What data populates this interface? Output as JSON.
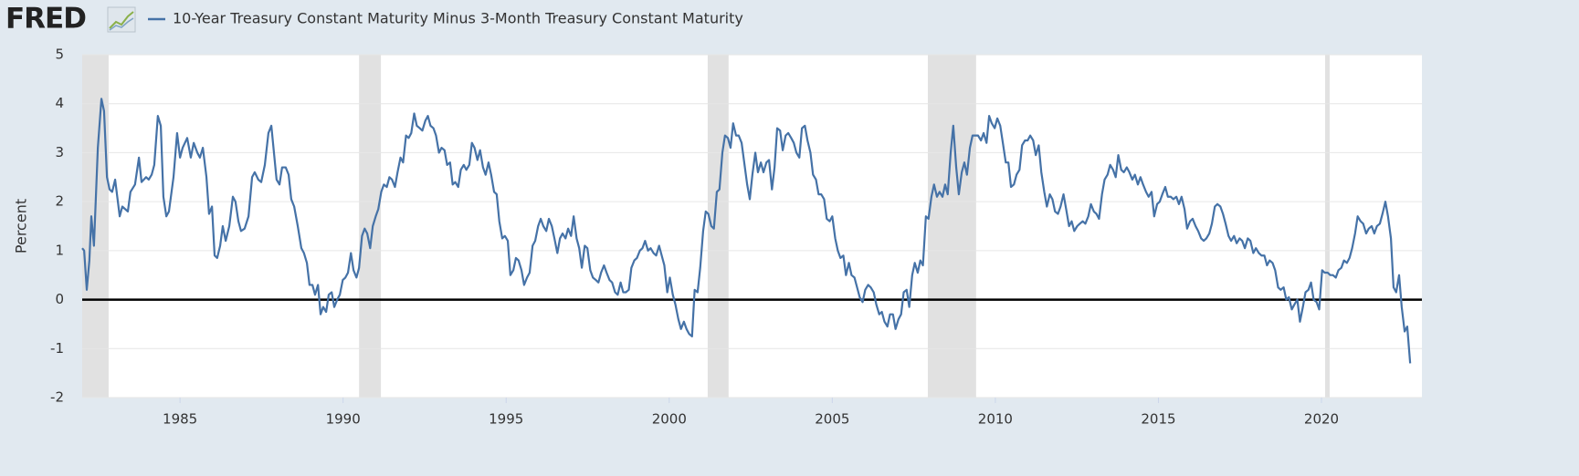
{
  "chart_data": {
    "type": "line",
    "logo": "FRED",
    "ylabel": "Percent",
    "grid": true,
    "xlim": [
      1982,
      2023.08
    ],
    "xticks": [
      1985,
      1990,
      1995,
      2000,
      2005,
      2010,
      2015,
      2020
    ],
    "ylim": [
      -2,
      5
    ],
    "yticks": [
      -2,
      -1,
      0,
      1,
      2,
      3,
      4,
      5
    ],
    "recession_color": "#e1e1e1",
    "recessions": [
      [
        1982.0,
        1982.81
      ],
      [
        1990.49,
        1991.16
      ],
      [
        2001.18,
        2001.82
      ],
      [
        2007.93,
        2009.41
      ],
      [
        2020.11,
        2020.25
      ]
    ],
    "x": [
      1982.0,
      1982.06,
      1982.14,
      1982.22,
      1982.28,
      1982.36,
      1982.48,
      1982.59,
      1982.67,
      1982.76,
      1982.84,
      1982.92,
      1983.01,
      1983.15,
      1983.23,
      1983.4,
      1983.48,
      1983.62,
      1983.74,
      1983.82,
      1983.96,
      1984.04,
      1984.13,
      1984.21,
      1984.32,
      1984.41,
      1984.49,
      1984.58,
      1984.66,
      1984.8,
      1984.91,
      1985.0,
      1985.08,
      1985.22,
      1985.33,
      1985.42,
      1985.53,
      1985.61,
      1985.7,
      1985.81,
      1985.89,
      1985.98,
      1986.06,
      1986.14,
      1986.23,
      1986.31,
      1986.4,
      1986.51,
      1986.62,
      1986.7,
      1986.79,
      1986.87,
      1986.98,
      1987.1,
      1987.21,
      1987.29,
      1987.4,
      1987.49,
      1987.6,
      1987.71,
      1987.8,
      1987.88,
      1987.96,
      1988.05,
      1988.13,
      1988.24,
      1988.33,
      1988.41,
      1988.5,
      1988.61,
      1988.72,
      1988.8,
      1988.89,
      1988.97,
      1989.06,
      1989.14,
      1989.23,
      1989.31,
      1989.39,
      1989.48,
      1989.56,
      1989.65,
      1989.73,
      1989.82,
      1989.9,
      1989.99,
      1990.07,
      1990.15,
      1990.24,
      1990.32,
      1990.41,
      1990.49,
      1990.58,
      1990.66,
      1990.74,
      1990.83,
      1990.91,
      1991.0,
      1991.08,
      1991.17,
      1991.25,
      1991.34,
      1991.42,
      1991.5,
      1991.59,
      1991.67,
      1991.76,
      1991.84,
      1991.93,
      1992.01,
      1992.09,
      1992.18,
      1992.26,
      1992.35,
      1992.43,
      1992.52,
      1992.6,
      1992.68,
      1992.77,
      1992.85,
      1992.94,
      1993.02,
      1993.11,
      1993.19,
      1993.28,
      1993.36,
      1993.44,
      1993.53,
      1993.61,
      1993.7,
      1993.78,
      1993.87,
      1993.95,
      1994.03,
      1994.12,
      1994.2,
      1994.29,
      1994.37,
      1994.46,
      1994.54,
      1994.63,
      1994.71,
      1994.79,
      1994.88,
      1994.96,
      1995.05,
      1995.13,
      1995.22,
      1995.3,
      1995.38,
      1995.47,
      1995.55,
      1995.64,
      1995.72,
      1995.81,
      1995.89,
      1995.98,
      1996.06,
      1996.14,
      1996.23,
      1996.31,
      1996.4,
      1996.48,
      1996.57,
      1996.65,
      1996.73,
      1996.82,
      1996.9,
      1996.99,
      1997.07,
      1997.16,
      1997.24,
      1997.32,
      1997.41,
      1997.49,
      1997.58,
      1997.66,
      1997.75,
      1997.83,
      1997.91,
      1998.0,
      1998.08,
      1998.17,
      1998.25,
      1998.34,
      1998.42,
      1998.51,
      1998.59,
      1998.67,
      1998.76,
      1998.84,
      1998.93,
      1999.01,
      1999.1,
      1999.18,
      1999.26,
      1999.35,
      1999.43,
      1999.52,
      1999.6,
      1999.69,
      1999.77,
      1999.85,
      1999.94,
      2000.02,
      2000.11,
      2000.19,
      2000.28,
      2000.36,
      2000.45,
      2000.53,
      2000.61,
      2000.7,
      2000.78,
      2000.87,
      2000.95,
      2001.04,
      2001.12,
      2001.2,
      2001.29,
      2001.37,
      2001.46,
      2001.54,
      2001.63,
      2001.71,
      2001.8,
      2001.88,
      2001.96,
      2002.05,
      2002.13,
      2002.22,
      2002.3,
      2002.39,
      2002.47,
      2002.55,
      2002.64,
      2002.72,
      2002.81,
      2002.89,
      2002.98,
      2003.06,
      2003.15,
      2003.23,
      2003.31,
      2003.4,
      2003.48,
      2003.57,
      2003.65,
      2003.74,
      2003.82,
      2003.9,
      2003.99,
      2004.07,
      2004.16,
      2004.24,
      2004.33,
      2004.41,
      2004.5,
      2004.58,
      2004.66,
      2004.75,
      2004.83,
      2004.92,
      2005.0,
      2005.09,
      2005.17,
      2005.25,
      2005.34,
      2005.42,
      2005.51,
      2005.59,
      2005.68,
      2005.76,
      2005.84,
      2005.93,
      2006.01,
      2006.1,
      2006.18,
      2006.27,
      2006.35,
      2006.44,
      2006.52,
      2006.6,
      2006.69,
      2006.77,
      2006.86,
      2006.94,
      2007.03,
      2007.11,
      2007.19,
      2007.28,
      2007.36,
      2007.45,
      2007.53,
      2007.62,
      2007.7,
      2007.78,
      2007.87,
      2007.95,
      2008.04,
      2008.12,
      2008.21,
      2008.29,
      2008.38,
      2008.46,
      2008.54,
      2008.63,
      2008.71,
      2008.8,
      2008.88,
      2008.97,
      2009.05,
      2009.13,
      2009.22,
      2009.3,
      2009.39,
      2009.47,
      2009.56,
      2009.64,
      2009.73,
      2009.81,
      2009.89,
      2009.98,
      2010.06,
      2010.15,
      2010.23,
      2010.32,
      2010.4,
      2010.48,
      2010.57,
      2010.65,
      2010.74,
      2010.82,
      2010.91,
      2010.99,
      2011.07,
      2011.16,
      2011.24,
      2011.33,
      2011.41,
      2011.5,
      2011.58,
      2011.67,
      2011.75,
      2011.83,
      2011.92,
      2012.0,
      2012.09,
      2012.17,
      2012.26,
      2012.34,
      2012.42,
      2012.51,
      2012.59,
      2012.68,
      2012.76,
      2012.85,
      2012.93,
      2013.02,
      2013.1,
      2013.18,
      2013.27,
      2013.35,
      2013.44,
      2013.52,
      2013.61,
      2013.69,
      2013.77,
      2013.86,
      2013.94,
      2014.03,
      2014.11,
      2014.2,
      2014.28,
      2014.37,
      2014.45,
      2014.53,
      2014.62,
      2014.7,
      2014.79,
      2014.87,
      2014.96,
      2015.04,
      2015.12,
      2015.21,
      2015.29,
      2015.38,
      2015.46,
      2015.55,
      2015.63,
      2015.71,
      2015.8,
      2015.88,
      2015.97,
      2016.05,
      2016.14,
      2016.22,
      2016.31,
      2016.39,
      2016.47,
      2016.56,
      2016.64,
      2016.73,
      2016.81,
      2016.9,
      2016.98,
      2017.06,
      2017.15,
      2017.23,
      2017.32,
      2017.4,
      2017.49,
      2017.57,
      2017.65,
      2017.74,
      2017.82,
      2017.91,
      2017.99,
      2018.08,
      2018.16,
      2018.25,
      2018.33,
      2018.41,
      2018.5,
      2018.58,
      2018.67,
      2018.75,
      2018.84,
      2018.92,
      2019.0,
      2019.09,
      2019.17,
      2019.26,
      2019.34,
      2019.43,
      2019.51,
      2019.6,
      2019.68,
      2019.76,
      2019.85,
      2019.93,
      2020.02,
      2020.1,
      2020.19,
      2020.27,
      2020.35,
      2020.44,
      2020.52,
      2020.61,
      2020.69,
      2020.78,
      2020.86,
      2020.94,
      2021.03,
      2021.11,
      2021.2,
      2021.28,
      2021.37,
      2021.45,
      2021.54,
      2021.62,
      2021.7,
      2021.79,
      2021.87,
      2021.96,
      2022.04,
      2022.13,
      2022.21,
      2022.29,
      2022.38,
      2022.46,
      2022.55,
      2022.63,
      2022.72
    ],
    "series": [
      {
        "name": "10-Year Treasury Constant Maturity Minus 3-Month Treasury Constant Maturity",
        "color": "#4572a7",
        "values": [
          1.05,
          1.0,
          0.2,
          0.8,
          1.7,
          1.1,
          3.1,
          4.1,
          3.85,
          2.5,
          2.25,
          2.2,
          2.45,
          1.7,
          1.9,
          1.8,
          2.2,
          2.35,
          2.9,
          2.4,
          2.5,
          2.45,
          2.55,
          2.75,
          3.75,
          3.55,
          2.1,
          1.7,
          1.8,
          2.5,
          3.4,
          2.9,
          3.1,
          3.3,
          2.9,
          3.2,
          3.0,
          2.9,
          3.1,
          2.5,
          1.75,
          1.9,
          0.9,
          0.85,
          1.1,
          1.5,
          1.2,
          1.5,
          2.1,
          2.0,
          1.6,
          1.4,
          1.45,
          1.7,
          2.5,
          2.6,
          2.45,
          2.4,
          2.75,
          3.4,
          3.55,
          3.0,
          2.45,
          2.35,
          2.7,
          2.7,
          2.55,
          2.05,
          1.9,
          1.5,
          1.05,
          0.95,
          0.75,
          0.3,
          0.3,
          0.1,
          0.3,
          -0.3,
          -0.15,
          -0.25,
          0.1,
          0.15,
          -0.15,
          0.0,
          0.1,
          0.4,
          0.45,
          0.55,
          0.95,
          0.6,
          0.45,
          0.65,
          1.3,
          1.45,
          1.35,
          1.05,
          1.5,
          1.7,
          1.85,
          2.2,
          2.35,
          2.3,
          2.5,
          2.45,
          2.3,
          2.6,
          2.9,
          2.8,
          3.35,
          3.3,
          3.4,
          3.8,
          3.55,
          3.5,
          3.45,
          3.65,
          3.75,
          3.55,
          3.5,
          3.35,
          3.0,
          3.1,
          3.05,
          2.75,
          2.8,
          2.35,
          2.4,
          2.3,
          2.65,
          2.75,
          2.65,
          2.75,
          3.2,
          3.1,
          2.85,
          3.05,
          2.7,
          2.55,
          2.8,
          2.55,
          2.2,
          2.15,
          1.6,
          1.25,
          1.3,
          1.2,
          0.5,
          0.6,
          0.85,
          0.8,
          0.6,
          0.3,
          0.45,
          0.55,
          1.1,
          1.2,
          1.5,
          1.65,
          1.5,
          1.4,
          1.65,
          1.5,
          1.25,
          0.95,
          1.25,
          1.35,
          1.25,
          1.45,
          1.3,
          1.7,
          1.25,
          1.05,
          0.65,
          1.1,
          1.05,
          0.6,
          0.45,
          0.4,
          0.35,
          0.55,
          0.7,
          0.55,
          0.4,
          0.35,
          0.15,
          0.1,
          0.35,
          0.15,
          0.15,
          0.2,
          0.65,
          0.8,
          0.85,
          1.0,
          1.05,
          1.2,
          1.0,
          1.05,
          0.95,
          0.9,
          1.1,
          0.9,
          0.7,
          0.15,
          0.45,
          0.1,
          -0.1,
          -0.4,
          -0.6,
          -0.45,
          -0.6,
          -0.7,
          -0.75,
          0.2,
          0.15,
          0.65,
          1.4,
          1.8,
          1.75,
          1.5,
          1.45,
          2.2,
          2.25,
          3.0,
          3.35,
          3.3,
          3.1,
          3.6,
          3.35,
          3.35,
          3.2,
          2.8,
          2.35,
          2.05,
          2.55,
          3.0,
          2.6,
          2.8,
          2.6,
          2.8,
          2.85,
          2.25,
          2.7,
          3.5,
          3.45,
          3.05,
          3.35,
          3.4,
          3.3,
          3.2,
          3.0,
          2.9,
          3.5,
          3.55,
          3.25,
          3.0,
          2.55,
          2.45,
          2.15,
          2.15,
          2.05,
          1.65,
          1.6,
          1.7,
          1.25,
          1.0,
          0.85,
          0.9,
          0.5,
          0.75,
          0.5,
          0.45,
          0.25,
          0.05,
          -0.05,
          0.2,
          0.3,
          0.25,
          0.15,
          -0.1,
          -0.3,
          -0.25,
          -0.45,
          -0.55,
          -0.3,
          -0.3,
          -0.6,
          -0.4,
          -0.3,
          0.15,
          0.2,
          -0.15,
          0.5,
          0.75,
          0.55,
          0.8,
          0.7,
          1.7,
          1.65,
          2.1,
          2.35,
          2.1,
          2.2,
          2.1,
          2.35,
          2.15,
          3.0,
          3.55,
          2.7,
          2.15,
          2.6,
          2.8,
          2.55,
          3.1,
          3.35,
          3.35,
          3.35,
          3.25,
          3.4,
          3.2,
          3.75,
          3.6,
          3.5,
          3.7,
          3.55,
          3.2,
          2.8,
          2.8,
          2.3,
          2.35,
          2.55,
          2.65,
          3.15,
          3.25,
          3.25,
          3.35,
          3.25,
          2.95,
          3.15,
          2.6,
          2.2,
          1.9,
          2.15,
          2.05,
          1.8,
          1.75,
          1.9,
          2.15,
          1.85,
          1.5,
          1.6,
          1.4,
          1.5,
          1.55,
          1.6,
          1.55,
          1.7,
          1.95,
          1.8,
          1.75,
          1.65,
          2.15,
          2.45,
          2.55,
          2.75,
          2.65,
          2.5,
          2.95,
          2.65,
          2.6,
          2.7,
          2.6,
          2.45,
          2.55,
          2.35,
          2.5,
          2.35,
          2.2,
          2.1,
          2.2,
          1.7,
          1.95,
          2.0,
          2.15,
          2.3,
          2.1,
          2.1,
          2.05,
          2.1,
          1.95,
          2.1,
          1.85,
          1.45,
          1.6,
          1.65,
          1.5,
          1.4,
          1.25,
          1.2,
          1.25,
          1.35,
          1.55,
          1.9,
          1.95,
          1.9,
          1.75,
          1.55,
          1.3,
          1.2,
          1.3,
          1.15,
          1.25,
          1.2,
          1.05,
          1.25,
          1.2,
          0.95,
          1.05,
          0.95,
          0.9,
          0.9,
          0.7,
          0.8,
          0.75,
          0.6,
          0.25,
          0.2,
          0.25,
          0.0,
          0.05,
          -0.2,
          -0.1,
          0.0,
          -0.45,
          -0.15,
          0.15,
          0.2,
          0.35,
          0.0,
          -0.05,
          -0.2,
          0.6,
          0.55,
          0.55,
          0.5,
          0.5,
          0.45,
          0.6,
          0.65,
          0.8,
          0.75,
          0.85,
          1.05,
          1.35,
          1.7,
          1.6,
          1.55,
          1.35,
          1.45,
          1.5,
          1.35,
          1.5,
          1.55,
          1.75,
          2.0,
          1.7,
          1.25,
          0.25,
          0.15,
          0.5,
          -0.15,
          -0.65,
          -0.55,
          -1.3
        ]
      }
    ]
  }
}
